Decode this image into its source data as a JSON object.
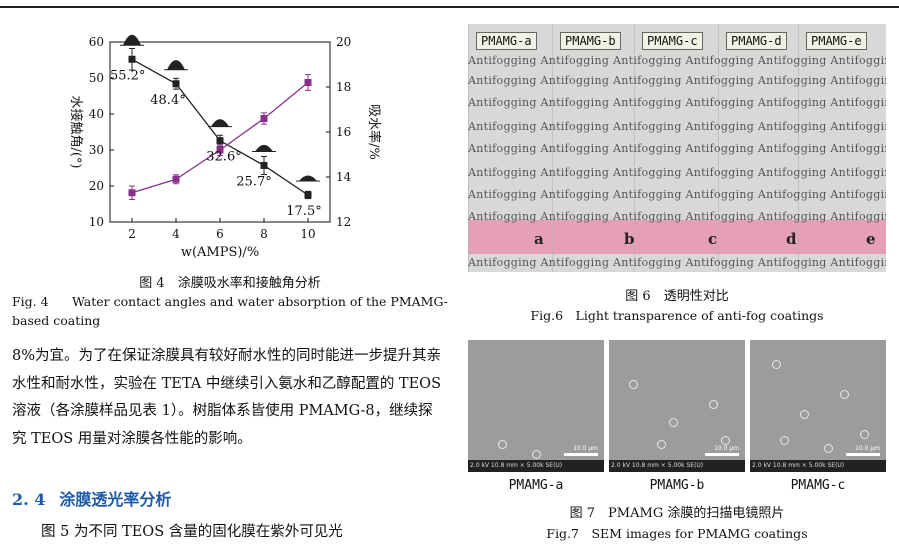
{
  "figure4": {
    "caption_cn": "图 4　涂膜吸水率和接触角分析",
    "caption_en_label": "Fig. 4",
    "caption_en": "Water contact angles and water absorption of the PMAMG-based coating",
    "chart_data": {
      "type": "line",
      "xlabel": "w(AMPS)/%",
      "ylabel_left": "水接触角/(°)",
      "ylabel_right": "吸水率/%",
      "x": [
        2,
        4,
        6,
        8,
        10
      ],
      "xticks": [
        "2",
        "4",
        "6",
        "8",
        "10"
      ],
      "ylim_left": [
        10,
        60
      ],
      "yticks_left": [
        "10",
        "20",
        "30",
        "40",
        "50",
        "60"
      ],
      "ylim_right": [
        12,
        20
      ],
      "yticks_right": [
        "12",
        "14",
        "16",
        "18",
        "20"
      ],
      "series": [
        {
          "axis": "left",
          "color": "#222222",
          "marker": "square",
          "values": [
            55.2,
            48.4,
            32.6,
            25.7,
            17.5
          ],
          "errors": [
            3,
            1.5,
            1.5,
            2.5,
            1
          ]
        },
        {
          "axis": "right",
          "color": "#8b2f8f",
          "marker": "square",
          "values": [
            13.3,
            13.9,
            15.2,
            16.6,
            18.2
          ],
          "errors": [
            0.3,
            0.2,
            0.25,
            0.25,
            0.35
          ]
        }
      ],
      "annotations": [
        "55.2°",
        "48.4°",
        "32.6°",
        "25.7°",
        "17.5°"
      ]
    }
  },
  "body": {
    "para1": "8%为宜。为了在保证涂膜具有较好耐水性的同时能进一步提升其亲水性和耐水性，实验在 TETA 中继续引入氨水和乙醇配置的 TEOS 溶液（各涂膜样品见表 1）。树脂体系皆使用 PMAMG-8，继续探究 TEOS 用量对涂膜各性能的影响。",
    "section_number": "2. 4",
    "section_title": "涂膜透光率分析",
    "para2": "图 5 为不同 TEOS 含量的固化膜在紫外可见光"
  },
  "figure6": {
    "tags": [
      "PMAMG-a",
      "PMAMG-b",
      "PMAMG-c",
      "PMAMG-d",
      "PMAMG-e"
    ],
    "background_word": "Antifogging",
    "letters": [
      "a",
      "b",
      "c",
      "d",
      "e"
    ],
    "caption_cn": "图 6　透明性对比",
    "caption_en": "Fig.6　Light transparence of anti-fog coatings"
  },
  "figure7": {
    "labels": [
      "PMAMG-a",
      "PMAMG-b",
      "PMAMG-c"
    ],
    "scalebar": "10.0 μm",
    "info": "2.0 kV  10.8 mm  × 5.00k SE(U)",
    "caption_cn": "图 7　PMAMG 涂膜的扫描电镜照片",
    "caption_en": "Fig.7　SEM images for PMAMG coatings"
  }
}
